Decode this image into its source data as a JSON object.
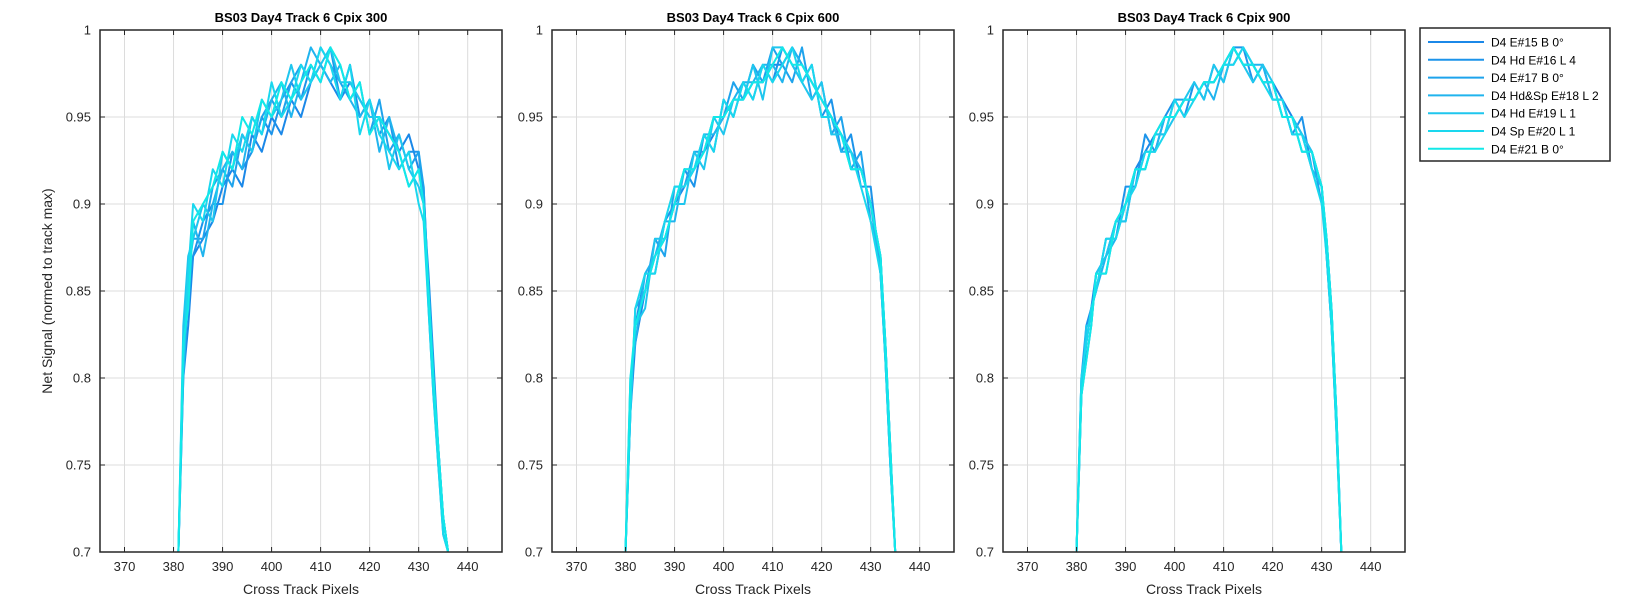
{
  "figure": {
    "ylabel": "Net Signal (normed to track max)"
  },
  "chart_data": [
    {
      "type": "line",
      "title": "BS03 Day4 Track 6  Cpix 300",
      "xlabel": "Cross Track Pixels",
      "ylabel": "Net Signal (normed to track max)",
      "xlim": [
        365,
        447
      ],
      "ylim": [
        0.7,
        1.0
      ],
      "xticks": [
        370,
        380,
        390,
        400,
        410,
        420,
        430,
        440
      ],
      "yticks": [
        0.7,
        0.75,
        0.8,
        0.85,
        0.9,
        0.95,
        1
      ],
      "grid": true,
      "x": [
        381,
        382,
        383,
        384,
        386,
        388,
        390,
        392,
        394,
        396,
        398,
        400,
        402,
        404,
        406,
        408,
        410,
        412,
        414,
        416,
        418,
        420,
        422,
        424,
        426,
        428,
        430,
        431,
        432,
        433,
        434,
        435,
        436
      ],
      "series": [
        {
          "name": "D4 E#15 B 0°",
          "color": "#1b88e8",
          "values": [
            0.7,
            0.8,
            0.83,
            0.87,
            0.88,
            0.89,
            0.91,
            0.92,
            0.91,
            0.94,
            0.93,
            0.95,
            0.94,
            0.96,
            0.95,
            0.97,
            0.98,
            0.97,
            0.96,
            0.97,
            0.96,
            0.95,
            0.95,
            0.94,
            0.93,
            0.94,
            0.92,
            0.91,
            0.85,
            0.8,
            0.76,
            0.72,
            0.7
          ]
        },
        {
          "name": "D4 Hd E#16 L 4",
          "color": "#1c94ea",
          "values": [
            0.7,
            0.81,
            0.85,
            0.87,
            0.89,
            0.9,
            0.9,
            0.93,
            0.92,
            0.93,
            0.95,
            0.94,
            0.96,
            0.97,
            0.96,
            0.98,
            0.97,
            0.99,
            0.96,
            0.98,
            0.95,
            0.96,
            0.94,
            0.95,
            0.92,
            0.93,
            0.93,
            0.9,
            0.86,
            0.81,
            0.76,
            0.72,
            0.7
          ]
        },
        {
          "name": "D4 E#17 B 0°",
          "color": "#1ea3ec",
          "values": [
            0.7,
            0.82,
            0.86,
            0.88,
            0.88,
            0.91,
            0.92,
            0.91,
            0.94,
            0.93,
            0.95,
            0.96,
            0.95,
            0.97,
            0.98,
            0.97,
            0.99,
            0.98,
            0.97,
            0.96,
            0.97,
            0.94,
            0.96,
            0.93,
            0.94,
            0.92,
            0.93,
            0.91,
            0.85,
            0.8,
            0.75,
            0.72,
            0.7
          ]
        },
        {
          "name": "D4 Hd&Sp E#18 L 2",
          "color": "#20b4ee",
          "values": [
            0.7,
            0.8,
            0.85,
            0.89,
            0.87,
            0.9,
            0.92,
            0.93,
            0.92,
            0.95,
            0.94,
            0.96,
            0.97,
            0.95,
            0.97,
            0.99,
            0.98,
            0.97,
            0.98,
            0.96,
            0.95,
            0.96,
            0.93,
            0.95,
            0.93,
            0.91,
            0.92,
            0.9,
            0.84,
            0.79,
            0.75,
            0.71,
            0.7
          ]
        },
        {
          "name": "D4 Hd E#19 L 1",
          "color": "#1fc6ee",
          "values": [
            0.7,
            0.83,
            0.87,
            0.88,
            0.9,
            0.89,
            0.93,
            0.92,
            0.94,
            0.93,
            0.96,
            0.95,
            0.96,
            0.98,
            0.96,
            0.97,
            0.98,
            0.99,
            0.97,
            0.97,
            0.96,
            0.95,
            0.95,
            0.92,
            0.94,
            0.92,
            0.91,
            0.9,
            0.85,
            0.8,
            0.76,
            0.72,
            0.7
          ]
        },
        {
          "name": "D4 Sp E#20 L 1",
          "color": "#1ad7ee",
          "values": [
            0.7,
            0.81,
            0.86,
            0.9,
            0.89,
            0.92,
            0.91,
            0.94,
            0.93,
            0.95,
            0.94,
            0.97,
            0.95,
            0.96,
            0.98,
            0.97,
            0.99,
            0.98,
            0.96,
            0.98,
            0.94,
            0.96,
            0.94,
            0.93,
            0.92,
            0.93,
            0.9,
            0.89,
            0.84,
            0.79,
            0.75,
            0.71,
            0.7
          ]
        },
        {
          "name": "D4 E#21 B 0°",
          "color": "#12e8e8",
          "values": [
            0.7,
            0.82,
            0.84,
            0.89,
            0.9,
            0.91,
            0.93,
            0.92,
            0.95,
            0.94,
            0.96,
            0.95,
            0.97,
            0.96,
            0.97,
            0.98,
            0.97,
            0.99,
            0.98,
            0.96,
            0.97,
            0.94,
            0.95,
            0.94,
            0.93,
            0.91,
            0.92,
            0.9,
            0.85,
            0.8,
            0.76,
            0.72,
            0.7
          ]
        }
      ]
    },
    {
      "type": "line",
      "title": "BS03 Day4 Track 6  Cpix 600",
      "xlabel": "Cross Track Pixels",
      "xlim": [
        365,
        447
      ],
      "ylim": [
        0.7,
        1.0
      ],
      "xticks": [
        370,
        380,
        390,
        400,
        410,
        420,
        430,
        440
      ],
      "yticks": [
        0.7,
        0.75,
        0.8,
        0.85,
        0.9,
        0.95,
        1
      ],
      "grid": true,
      "x": [
        380,
        381,
        382,
        384,
        386,
        388,
        390,
        392,
        394,
        396,
        398,
        400,
        402,
        404,
        406,
        408,
        410,
        412,
        414,
        416,
        418,
        420,
        422,
        424,
        426,
        428,
        430,
        432,
        433,
        434,
        435
      ],
      "series": [
        {
          "name": "D4 E#15 B 0°",
          "color": "#1b88e8",
          "values": [
            0.7,
            0.78,
            0.82,
            0.85,
            0.87,
            0.88,
            0.9,
            0.91,
            0.92,
            0.93,
            0.94,
            0.95,
            0.96,
            0.96,
            0.97,
            0.97,
            0.98,
            0.98,
            0.99,
            0.98,
            0.97,
            0.96,
            0.95,
            0.94,
            0.93,
            0.92,
            0.9,
            0.87,
            0.82,
            0.76,
            0.7
          ]
        },
        {
          "name": "D4 Hd E#16 L 4",
          "color": "#1c94ea",
          "values": [
            0.7,
            0.79,
            0.83,
            0.86,
            0.86,
            0.89,
            0.9,
            0.92,
            0.91,
            0.94,
            0.93,
            0.96,
            0.95,
            0.97,
            0.96,
            0.98,
            0.97,
            0.99,
            0.98,
            0.97,
            0.98,
            0.95,
            0.96,
            0.93,
            0.94,
            0.91,
            0.91,
            0.86,
            0.81,
            0.75,
            0.7
          ]
        },
        {
          "name": "D4 E#17 B 0°",
          "color": "#1ea3ec",
          "values": [
            0.7,
            0.78,
            0.84,
            0.85,
            0.88,
            0.87,
            0.91,
            0.91,
            0.93,
            0.93,
            0.95,
            0.95,
            0.97,
            0.96,
            0.98,
            0.97,
            0.99,
            0.98,
            0.97,
            0.99,
            0.96,
            0.97,
            0.94,
            0.95,
            0.92,
            0.93,
            0.89,
            0.87,
            0.82,
            0.76,
            0.7
          ]
        },
        {
          "name": "D4 Hd&Sp E#18 L 2",
          "color": "#20b4ee",
          "values": [
            0.7,
            0.8,
            0.82,
            0.86,
            0.87,
            0.89,
            0.89,
            0.92,
            0.92,
            0.94,
            0.94,
            0.95,
            0.96,
            0.97,
            0.97,
            0.98,
            0.98,
            0.97,
            0.99,
            0.98,
            0.97,
            0.96,
            0.95,
            0.93,
            0.93,
            0.92,
            0.9,
            0.86,
            0.81,
            0.75,
            0.7
          ]
        },
        {
          "name": "D4 Hd E#19 L 1",
          "color": "#1fc6ee",
          "values": [
            0.7,
            0.79,
            0.83,
            0.84,
            0.88,
            0.88,
            0.9,
            0.9,
            0.93,
            0.92,
            0.95,
            0.94,
            0.96,
            0.96,
            0.98,
            0.96,
            0.99,
            0.99,
            0.98,
            0.97,
            0.96,
            0.97,
            0.94,
            0.94,
            0.92,
            0.92,
            0.9,
            0.87,
            0.82,
            0.76,
            0.7
          ]
        },
        {
          "name": "D4 Sp E#20 L 1",
          "color": "#1ad7ee",
          "values": [
            0.7,
            0.78,
            0.84,
            0.86,
            0.86,
            0.89,
            0.91,
            0.91,
            0.92,
            0.94,
            0.93,
            0.96,
            0.95,
            0.97,
            0.96,
            0.98,
            0.97,
            0.98,
            0.99,
            0.97,
            0.98,
            0.95,
            0.95,
            0.94,
            0.93,
            0.91,
            0.89,
            0.86,
            0.81,
            0.75,
            0.7
          ]
        },
        {
          "name": "D4 E#21 B 0°",
          "color": "#12e8e8",
          "values": [
            0.7,
            0.8,
            0.83,
            0.85,
            0.87,
            0.88,
            0.9,
            0.92,
            0.92,
            0.93,
            0.95,
            0.95,
            0.96,
            0.96,
            0.97,
            0.97,
            0.98,
            0.99,
            0.98,
            0.98,
            0.97,
            0.96,
            0.95,
            0.94,
            0.92,
            0.92,
            0.9,
            0.87,
            0.82,
            0.76,
            0.7
          ]
        }
      ]
    },
    {
      "type": "line",
      "title": "BS03 Day4 Track 6  Cpix 900",
      "xlabel": "Cross Track Pixels",
      "xlim": [
        365,
        447
      ],
      "ylim": [
        0.7,
        1.0
      ],
      "xticks": [
        370,
        380,
        390,
        400,
        410,
        420,
        430,
        440
      ],
      "yticks": [
        0.7,
        0.75,
        0.8,
        0.85,
        0.9,
        0.95,
        1
      ],
      "grid": true,
      "x": [
        380,
        381,
        382,
        383,
        384,
        386,
        388,
        390,
        392,
        394,
        396,
        398,
        400,
        402,
        404,
        406,
        408,
        410,
        412,
        414,
        416,
        418,
        420,
        422,
        424,
        426,
        428,
        430,
        431,
        432,
        433,
        434
      ],
      "series": [
        {
          "name": "D4 E#15 B 0°",
          "color": "#1b88e8",
          "values": [
            0.7,
            0.79,
            0.82,
            0.84,
            0.86,
            0.87,
            0.89,
            0.9,
            0.92,
            0.93,
            0.94,
            0.95,
            0.95,
            0.96,
            0.96,
            0.97,
            0.97,
            0.98,
            0.99,
            0.98,
            0.98,
            0.97,
            0.97,
            0.96,
            0.95,
            0.94,
            0.93,
            0.91,
            0.88,
            0.84,
            0.78,
            0.7
          ]
        },
        {
          "name": "D4 Hd E#16 L 4",
          "color": "#1c94ea",
          "values": [
            0.7,
            0.8,
            0.83,
            0.84,
            0.85,
            0.88,
            0.88,
            0.91,
            0.91,
            0.94,
            0.93,
            0.95,
            0.96,
            0.95,
            0.97,
            0.96,
            0.98,
            0.97,
            0.99,
            0.99,
            0.97,
            0.98,
            0.96,
            0.96,
            0.94,
            0.95,
            0.92,
            0.91,
            0.87,
            0.83,
            0.77,
            0.7
          ]
        },
        {
          "name": "D4 E#17 B 0°",
          "color": "#1ea3ec",
          "values": [
            0.7,
            0.79,
            0.81,
            0.83,
            0.86,
            0.86,
            0.89,
            0.89,
            0.92,
            0.92,
            0.94,
            0.94,
            0.96,
            0.96,
            0.96,
            0.97,
            0.97,
            0.98,
            0.98,
            0.99,
            0.98,
            0.97,
            0.97,
            0.95,
            0.95,
            0.93,
            0.93,
            0.9,
            0.88,
            0.84,
            0.78,
            0.7
          ]
        },
        {
          "name": "D4 Hd&Sp E#18 L 2",
          "color": "#20b4ee",
          "values": [
            0.7,
            0.8,
            0.82,
            0.84,
            0.85,
            0.87,
            0.88,
            0.9,
            0.91,
            0.93,
            0.93,
            0.95,
            0.95,
            0.96,
            0.96,
            0.97,
            0.96,
            0.98,
            0.99,
            0.98,
            0.98,
            0.98,
            0.96,
            0.96,
            0.94,
            0.94,
            0.92,
            0.91,
            0.87,
            0.83,
            0.77,
            0.7
          ]
        },
        {
          "name": "D4 Hd E#19 L 1",
          "color": "#1fc6ee",
          "values": [
            0.7,
            0.79,
            0.83,
            0.83,
            0.86,
            0.87,
            0.89,
            0.89,
            0.92,
            0.92,
            0.94,
            0.94,
            0.95,
            0.96,
            0.97,
            0.96,
            0.98,
            0.97,
            0.99,
            0.98,
            0.97,
            0.98,
            0.97,
            0.95,
            0.95,
            0.94,
            0.93,
            0.91,
            0.88,
            0.84,
            0.78,
            0.7
          ]
        },
        {
          "name": "D4 Sp E#20 L 1",
          "color": "#1ad7ee",
          "values": [
            0.7,
            0.8,
            0.82,
            0.84,
            0.85,
            0.88,
            0.88,
            0.9,
            0.91,
            0.93,
            0.93,
            0.94,
            0.96,
            0.95,
            0.96,
            0.97,
            0.97,
            0.98,
            0.98,
            0.99,
            0.98,
            0.97,
            0.96,
            0.96,
            0.94,
            0.94,
            0.92,
            0.9,
            0.87,
            0.83,
            0.77,
            0.7
          ]
        },
        {
          "name": "D4 E#21 B 0°",
          "color": "#12e8e8",
          "values": [
            0.7,
            0.79,
            0.81,
            0.83,
            0.86,
            0.86,
            0.89,
            0.9,
            0.92,
            0.92,
            0.94,
            0.95,
            0.95,
            0.96,
            0.96,
            0.97,
            0.97,
            0.98,
            0.99,
            0.98,
            0.98,
            0.97,
            0.97,
            0.95,
            0.95,
            0.93,
            0.93,
            0.91,
            0.88,
            0.84,
            0.78,
            0.7
          ]
        }
      ]
    }
  ],
  "legend": {
    "placement": "right",
    "entries": [
      {
        "label": "D4 E#15 B 0°",
        "color": "#1b88e8"
      },
      {
        "label": "D4 Hd E#16 L 4",
        "color": "#1c94ea"
      },
      {
        "label": "D4 E#17 B 0°",
        "color": "#1ea3ec"
      },
      {
        "label": "D4 Hd&Sp E#18 L 2",
        "color": "#20b4ee"
      },
      {
        "label": "D4 Hd E#19 L 1",
        "color": "#1fc6ee"
      },
      {
        "label": "D4 Sp E#20 L 1",
        "color": "#1ad7ee"
      },
      {
        "label": "D4 E#21 B 0°",
        "color": "#12e8e8"
      }
    ]
  }
}
